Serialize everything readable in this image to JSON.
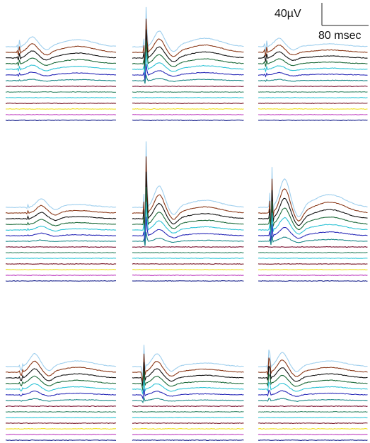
{
  "scale_bar": {
    "amplitude": "40µV",
    "time": "80 msec"
  }
}
